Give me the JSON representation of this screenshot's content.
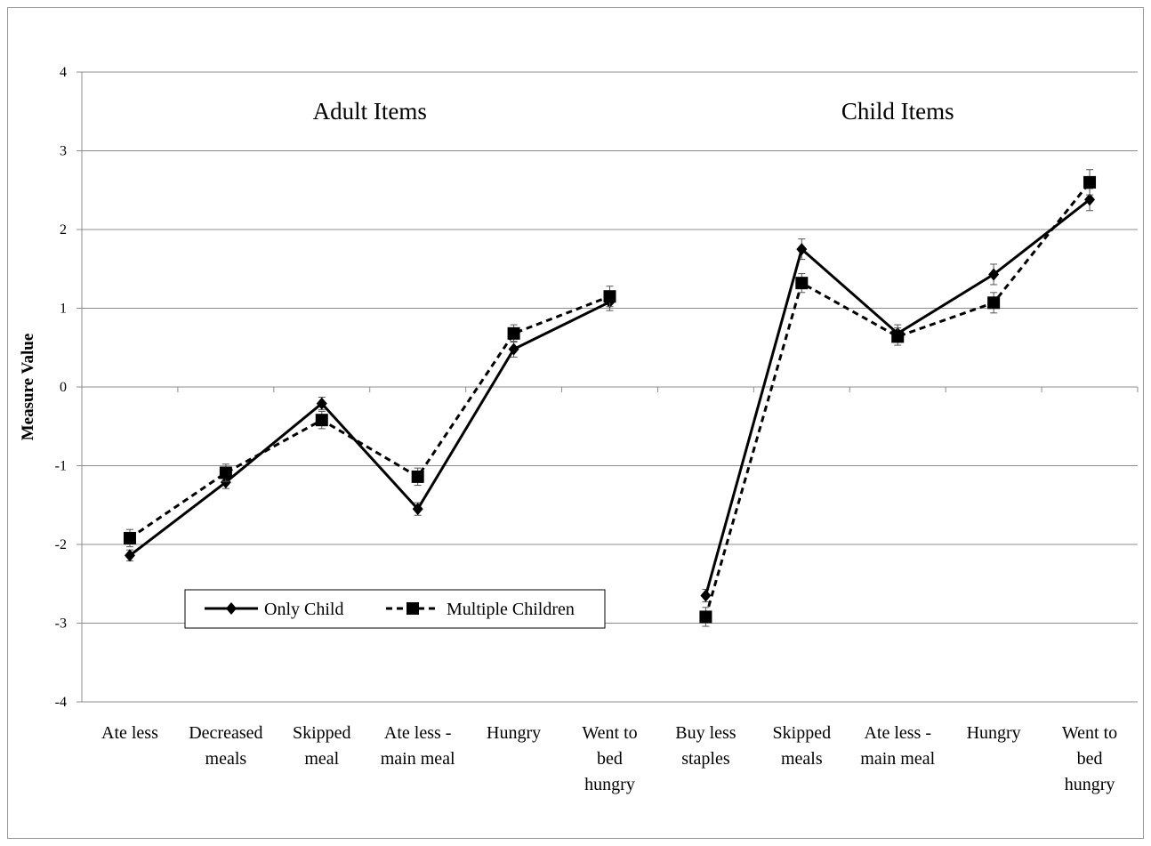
{
  "chart_data": {
    "type": "line",
    "ylabel": "Measure Value",
    "xlabel": "",
    "ylim": [
      -4,
      4
    ],
    "y_ticks": [
      "4",
      "3",
      "2",
      "1",
      "0",
      "-1",
      "-2",
      "-3",
      "-4"
    ],
    "grid": "horizontal",
    "legend_position": "lower-left",
    "group_labels": [
      "Adult Items",
      "Child Items"
    ],
    "categories": [
      [
        "Ate less"
      ],
      [
        "Decreased",
        "meals"
      ],
      [
        "Skipped",
        "meal"
      ],
      [
        "Ate less -",
        "main meal"
      ],
      [
        "Hungry"
      ],
      [
        "Went to",
        "bed",
        "hungry"
      ],
      [
        "Buy less",
        "staples"
      ],
      [
        "Skipped",
        "meals"
      ],
      [
        "Ate less -",
        "main meal"
      ],
      [
        "Hungry"
      ],
      [
        "Went to",
        "bed",
        "hungry"
      ]
    ],
    "series": [
      {
        "name": "Only Child",
        "marker": "diamond",
        "line": "solid",
        "values": [
          -2.14,
          -1.21,
          -0.21,
          -1.55,
          0.48,
          1.08,
          -2.65,
          1.75,
          0.68,
          1.43,
          2.38
        ],
        "errors": [
          0.07,
          0.08,
          0.08,
          0.08,
          0.1,
          0.11,
          0.08,
          0.13,
          0.11,
          0.13,
          0.14
        ]
      },
      {
        "name": "Multiple Children",
        "marker": "square",
        "line": "dashed",
        "values": [
          -1.92,
          -1.09,
          -0.42,
          -1.14,
          0.68,
          1.15,
          -2.92,
          1.32,
          0.64,
          1.07,
          2.6
        ],
        "errors": [
          0.11,
          0.11,
          0.11,
          0.11,
          0.11,
          0.13,
          0.12,
          0.12,
          0.11,
          0.13,
          0.16
        ]
      }
    ],
    "colors": {
      "line": "#000000",
      "grid": "#8c8c8c",
      "frame": "#9a9a9a"
    }
  }
}
